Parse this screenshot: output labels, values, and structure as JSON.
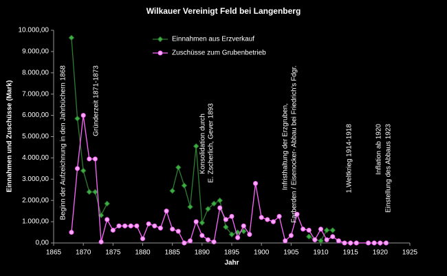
{
  "chart_data": {
    "type": "line",
    "title": "Wilkauer Vereinigt Feld bei Langenberg",
    "x_label": "Jahr",
    "y_label": "Einnahmen und Zuschüsse (Mark)",
    "xlim": [
      1865,
      1925
    ],
    "xticks": [
      1865,
      1870,
      1875,
      1880,
      1885,
      1890,
      1895,
      1900,
      1905,
      1910,
      1915,
      1920,
      1925
    ],
    "ylim": [
      0,
      10000
    ],
    "yticks": [
      {
        "value": 0,
        "label": "0,00"
      },
      {
        "value": 1000,
        "label": "1.000,00"
      },
      {
        "value": 2000,
        "label": "2.000,00"
      },
      {
        "value": 3000,
        "label": "3.000,00"
      },
      {
        "value": 4000,
        "label": "4.000,00"
      },
      {
        "value": 5000,
        "label": "5.000,00"
      },
      {
        "value": 6000,
        "label": "6.000,00"
      },
      {
        "value": 7000,
        "label": "7.000,00"
      },
      {
        "value": 8000,
        "label": "8.000,00"
      },
      {
        "value": 9000,
        "label": "9.000,00"
      },
      {
        "value": 10000,
        "label": "10.000,00"
      }
    ],
    "series": [
      {
        "name": "Einnahmen aus Erzverkauf",
        "color": "#2e7d32",
        "marker_color": "#3cb043",
        "x": [
          1868,
          1869,
          1870,
          1871,
          1872,
          1873,
          1874,
          1875,
          1885,
          1886,
          1887,
          1888,
          1889,
          1890,
          1891,
          1892,
          1893,
          1894,
          1895,
          1896,
          1897,
          1898,
          1908,
          1909,
          1910,
          1911,
          1912
        ],
        "values": [
          9650,
          5850,
          3400,
          2400,
          2400,
          1300,
          1850,
          null,
          2450,
          3550,
          2700,
          1700,
          4550,
          950,
          1600,
          1850,
          2000,
          750,
          400,
          500,
          550,
          null,
          300,
          150,
          100,
          600,
          600
        ]
      },
      {
        "name": "Zuschüsse zum Grubenbetrieb",
        "color": "#ff66ff",
        "marker_color": "#ffaaff",
        "x": [
          1868,
          1869,
          1870,
          1871,
          1872,
          1873,
          1874,
          1875,
          1876,
          1877,
          1878,
          1879,
          1880,
          1881,
          1882,
          1883,
          1884,
          1885,
          1886,
          1887,
          1888,
          1889,
          1890,
          1891,
          1892,
          1893,
          1894,
          1895,
          1896,
          1897,
          1898,
          1899,
          1900,
          1901,
          1902,
          1903,
          1904,
          1905,
          1906,
          1907,
          1908,
          1909,
          1910,
          1911,
          1912,
          1913,
          1914,
          1915,
          1916,
          1918,
          1919,
          1920,
          1921
        ],
        "values": [
          500,
          3500,
          6000,
          3950,
          3950,
          50,
          1100,
          600,
          800,
          800,
          800,
          800,
          200,
          900,
          800,
          700,
          1500,
          650,
          550,
          0,
          100,
          1000,
          350,
          150,
          50,
          1650,
          1100,
          1250,
          250,
          800,
          400,
          2800,
          1200,
          1100,
          1000,
          1250,
          100,
          350,
          1350,
          650,
          600,
          150,
          650,
          150,
          300,
          100,
          0,
          0,
          0,
          0,
          0,
          0,
          0
        ]
      }
    ],
    "annotations": [
      "Beginn der Aufzeichnung in den Jahrbüchern 1868",
      "Gründerzeit 1871-1873",
      "Konsolidation durch",
      "E. Zscherlich, Gever 1893",
      "Infristhaltung der Erzgruben,",
      "Farberden / Eisenocker- Abbau bei Friedrich's Fdgr.",
      "1.Weltkrieg 1914-1918",
      "Inflation ab 1920",
      "Einstellung des Abbaus 1923"
    ],
    "legend": "top-left"
  }
}
